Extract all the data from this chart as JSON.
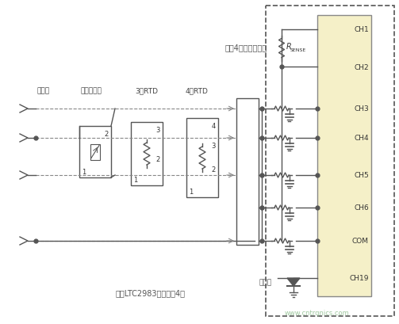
{
  "bg_color": "#ffffff",
  "dashed_box_color": "#555555",
  "ltc_chip_color": "#f5f0c8",
  "ltc_chip_border": "#888888",
  "wire_color": "#555555",
  "dashed_line_color": "#888888",
  "channel_labels": [
    "CH1",
    "CH2",
    "CH3",
    "CH4",
    "CH5",
    "CH6",
    "COM",
    "CH19"
  ],
  "top_label": "所有4组传感器共用",
  "bottom_label": "每个LTC2983连接多达4组",
  "sensor_labels": [
    "热电偶",
    "热敏电阵器",
    "3线RTD",
    "4线RTD"
  ],
  "cjc_label": "冷接点",
  "rsense_label": "R",
  "rsense_sub": "SENSE",
  "watermark": "www.cntrqnics.com",
  "fig_width": 5.03,
  "fig_height": 4.1,
  "dpi": 100
}
